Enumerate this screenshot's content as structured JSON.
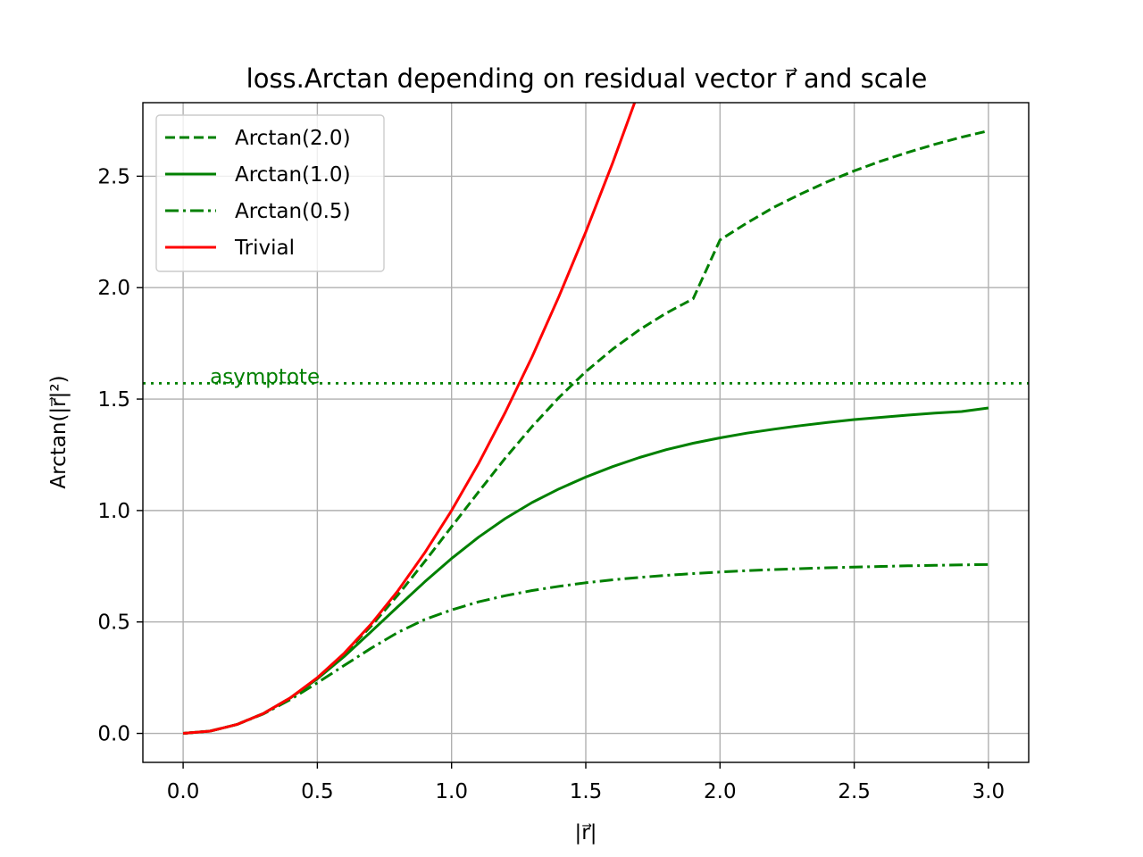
{
  "chart_data": {
    "type": "line",
    "title": "loss.Arctan depending on residual vector r⃗ and scale",
    "xlabel": "|r⃗|",
    "ylabel": "Arctan(|r⃗|²)",
    "xlim": [
      -0.15,
      3.15
    ],
    "ylim": [
      -0.13,
      2.83
    ],
    "xticks": [
      "0.0",
      "0.5",
      "1.0",
      "1.5",
      "2.0",
      "2.5",
      "3.0"
    ],
    "xtick_values": [
      0.0,
      0.5,
      1.0,
      1.5,
      2.0,
      2.5,
      3.0
    ],
    "yticks": [
      "0.0",
      "0.5",
      "1.0",
      "1.5",
      "2.0",
      "2.5"
    ],
    "ytick_values": [
      0.0,
      0.5,
      1.0,
      1.5,
      2.0,
      2.5
    ],
    "grid": true,
    "legend_placement": "top-left",
    "x": [
      0.0,
      0.1,
      0.2,
      0.3,
      0.4,
      0.5,
      0.6,
      0.7,
      0.8,
      0.9,
      1.0,
      1.1,
      1.2,
      1.3,
      1.4,
      1.5,
      1.6,
      1.7,
      1.8,
      1.9,
      2.0,
      2.1,
      2.2,
      2.3,
      2.4,
      2.5,
      2.6,
      2.7,
      2.8,
      2.9,
      3.0
    ],
    "series": [
      {
        "name": "Arctan(2.0)",
        "color": "#008000",
        "dash": "dashed",
        "values": [
          0.0,
          0.01,
          0.04,
          0.09,
          0.16,
          0.248,
          0.356,
          0.481,
          0.621,
          0.771,
          0.927,
          1.083,
          1.235,
          1.377,
          1.507,
          1.623,
          1.724,
          1.811,
          1.886,
          1.95,
          2.214,
          2.29,
          2.36,
          2.42,
          2.475,
          2.524,
          2.568,
          2.607,
          2.643,
          2.675,
          2.704
        ]
      },
      {
        "name": "Arctan(1.0)",
        "color": "#008000",
        "dash": "solid",
        "values": [
          0.0,
          0.01,
          0.04,
          0.09,
          0.159,
          0.245,
          0.345,
          0.456,
          0.569,
          0.68,
          0.785,
          0.88,
          0.964,
          1.036,
          1.097,
          1.15,
          1.197,
          1.238,
          1.273,
          1.302,
          1.326,
          1.347,
          1.365,
          1.381,
          1.395,
          1.408,
          1.418,
          1.428,
          1.437,
          1.444,
          1.46
        ]
      },
      {
        "name": "Arctan(0.5)",
        "color": "#008000",
        "dash": "dashdot",
        "values": [
          0.0,
          0.01,
          0.04,
          0.088,
          0.152,
          0.227,
          0.305,
          0.382,
          0.453,
          0.511,
          0.554,
          0.59,
          0.618,
          0.641,
          0.66,
          0.676,
          0.689,
          0.7,
          0.709,
          0.717,
          0.724,
          0.73,
          0.735,
          0.739,
          0.743,
          0.746,
          0.749,
          0.752,
          0.754,
          0.756,
          0.758
        ]
      },
      {
        "name": "Trivial",
        "color": "#ff0000",
        "dash": "solid",
        "x": [
          0.0,
          0.1,
          0.2,
          0.3,
          0.4,
          0.5,
          0.6,
          0.7,
          0.8,
          0.9,
          1.0,
          1.1,
          1.2,
          1.3,
          1.4,
          1.5,
          1.6,
          1.682
        ],
        "values": [
          0.0,
          0.01,
          0.04,
          0.09,
          0.16,
          0.25,
          0.36,
          0.49,
          0.64,
          0.81,
          1.0,
          1.21,
          1.44,
          1.69,
          1.96,
          2.25,
          2.56,
          2.83
        ]
      }
    ],
    "annotations": [
      {
        "text": "asymptote",
        "x": 0.1,
        "y": 1.57,
        "color": "#008000",
        "line_y": 1.5708,
        "line_style": "dotted"
      }
    ]
  }
}
